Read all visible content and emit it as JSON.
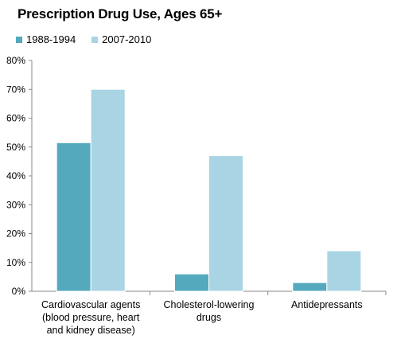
{
  "chart_data": {
    "type": "bar",
    "title": "Prescription Drug Use, Ages 65+",
    "xlabel": "",
    "ylabel": "",
    "ylim": [
      0,
      80
    ],
    "yticks": [
      "0%",
      "10%",
      "20%",
      "30%",
      "40%",
      "50%",
      "60%",
      "70%",
      "80%"
    ],
    "grid": false,
    "legend_position": "top-left",
    "categories": [
      [
        "Cardiovascular agents",
        "(blood pressure, heart",
        "and kidney disease)"
      ],
      [
        "Cholesterol-lowering",
        "drugs"
      ],
      [
        "Antidepressants"
      ]
    ],
    "series": [
      {
        "name": "1988-1994",
        "color": "#55a9bd",
        "values": [
          51.5,
          6,
          3
        ]
      },
      {
        "name": "2007-2010",
        "color": "#a8d4e3",
        "values": [
          70,
          47,
          14
        ]
      }
    ]
  }
}
